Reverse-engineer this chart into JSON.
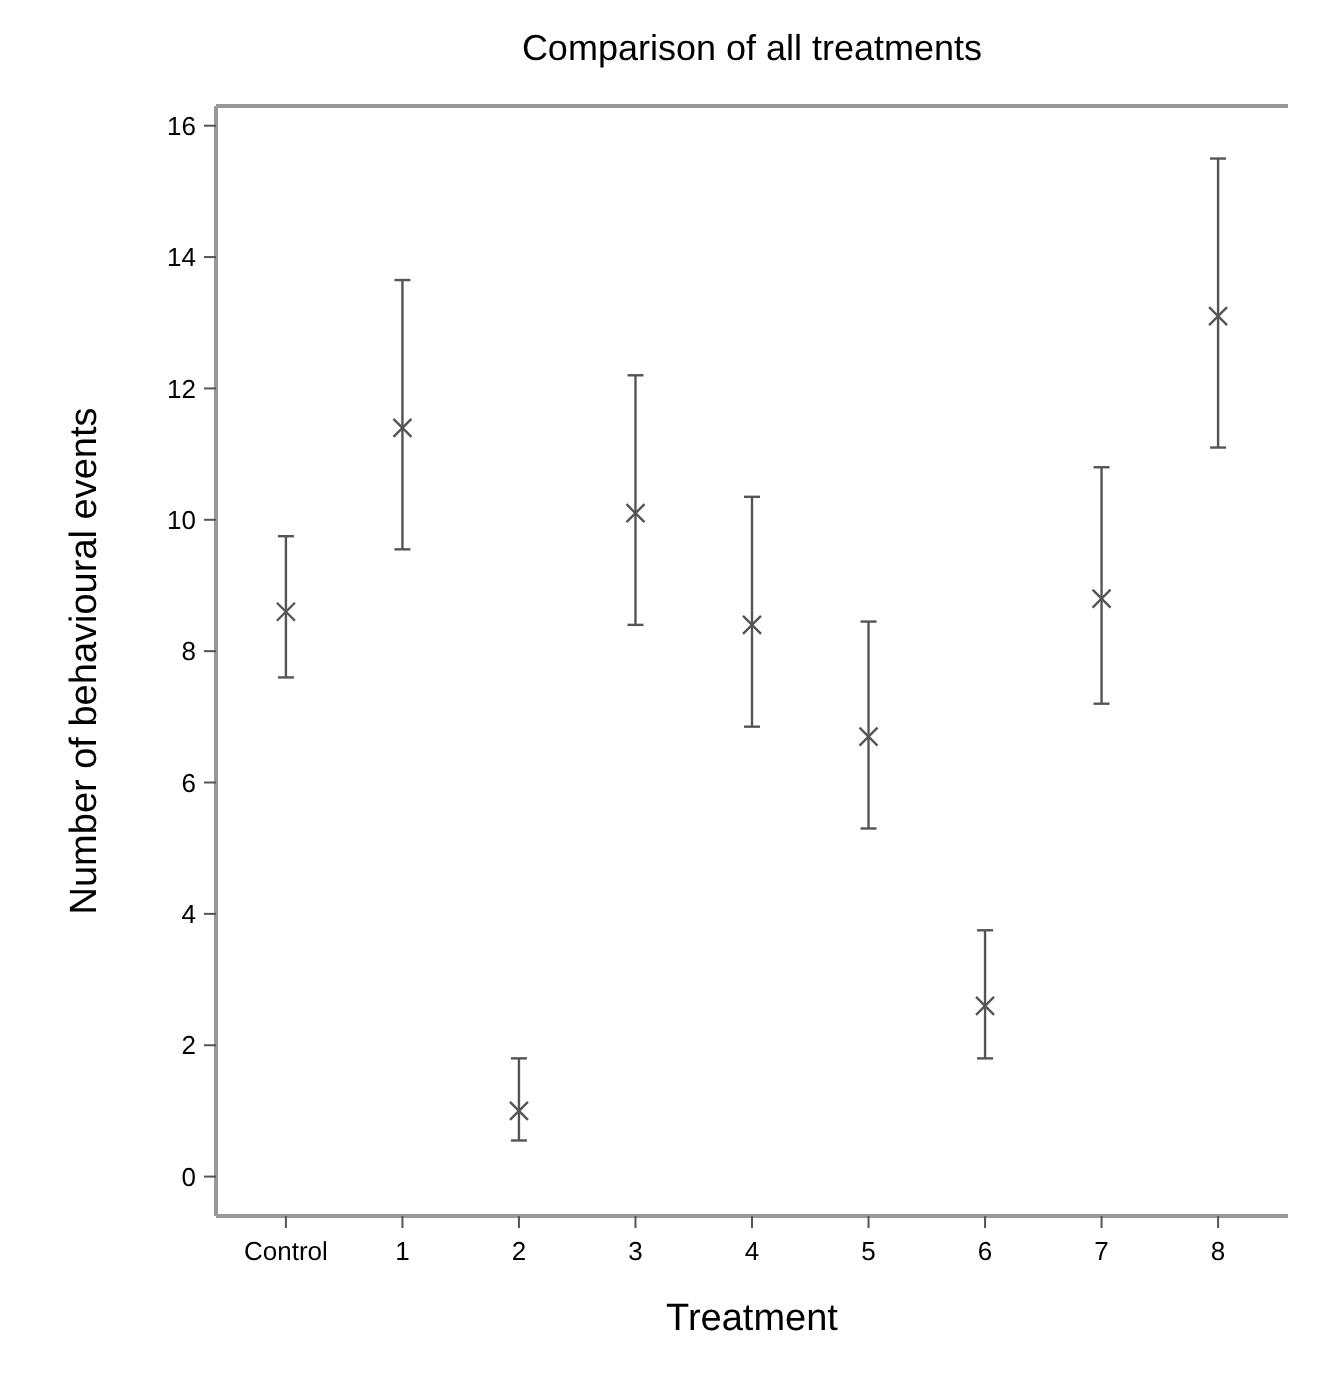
{
  "chart_data": {
    "type": "scatter",
    "title": "Comparison of all treatments",
    "xlabel": "Treatment",
    "ylabel": "Number of behavioural events",
    "categories": [
      "Control",
      "1",
      "2",
      "3",
      "4",
      "5",
      "6",
      "7",
      "8"
    ],
    "values": [
      8.6,
      11.4,
      1.0,
      10.1,
      8.4,
      6.7,
      2.6,
      8.8,
      13.1
    ],
    "errors": [
      [
        7.6,
        9.75
      ],
      [
        9.55,
        13.65
      ],
      [
        0.55,
        1.8
      ],
      [
        8.4,
        12.2
      ],
      [
        6.85,
        10.35
      ],
      [
        5.3,
        8.45
      ],
      [
        1.8,
        3.75
      ],
      [
        7.2,
        10.8
      ],
      [
        11.1,
        15.5
      ]
    ],
    "color": "#555555",
    "marker": "cross",
    "ylim": [
      -0.6,
      16.3
    ],
    "yticks": [
      0,
      2,
      4,
      6,
      8,
      10,
      12,
      14,
      16
    ],
    "grid": false
  }
}
